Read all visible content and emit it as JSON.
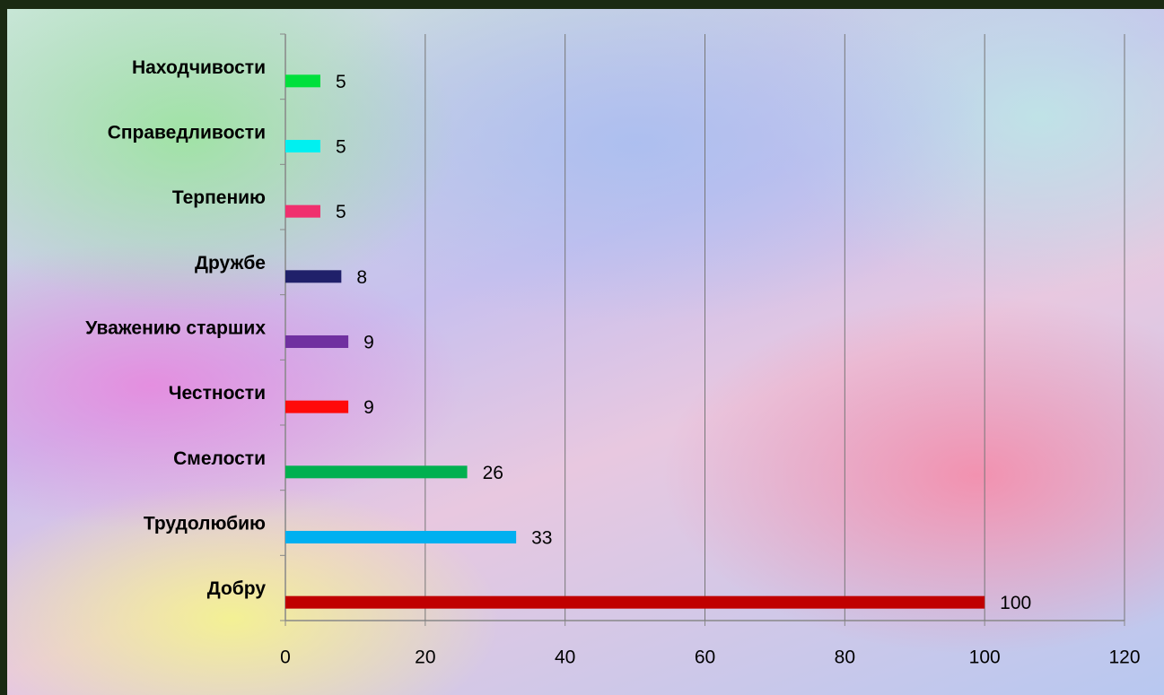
{
  "chart_data": {
    "type": "barh",
    "categories": [
      "Находчивости",
      "Справедливости",
      "Терпению",
      "Дружбе",
      "Уважению старших",
      "Честности",
      "Смелости",
      "Трудолюбию",
      "Добру"
    ],
    "values": [
      5,
      5,
      5,
      8,
      9,
      9,
      26,
      33,
      100
    ],
    "colors": [
      "#00e03c",
      "#00f0f0",
      "#f0306e",
      "#20206a",
      "#7030a0",
      "#ff0a0a",
      "#00b050",
      "#00b0f0",
      "#c00000"
    ],
    "xlim": [
      0,
      120
    ],
    "xticks": [
      0,
      20,
      40,
      60,
      80,
      100,
      120
    ],
    "grid": true
  }
}
